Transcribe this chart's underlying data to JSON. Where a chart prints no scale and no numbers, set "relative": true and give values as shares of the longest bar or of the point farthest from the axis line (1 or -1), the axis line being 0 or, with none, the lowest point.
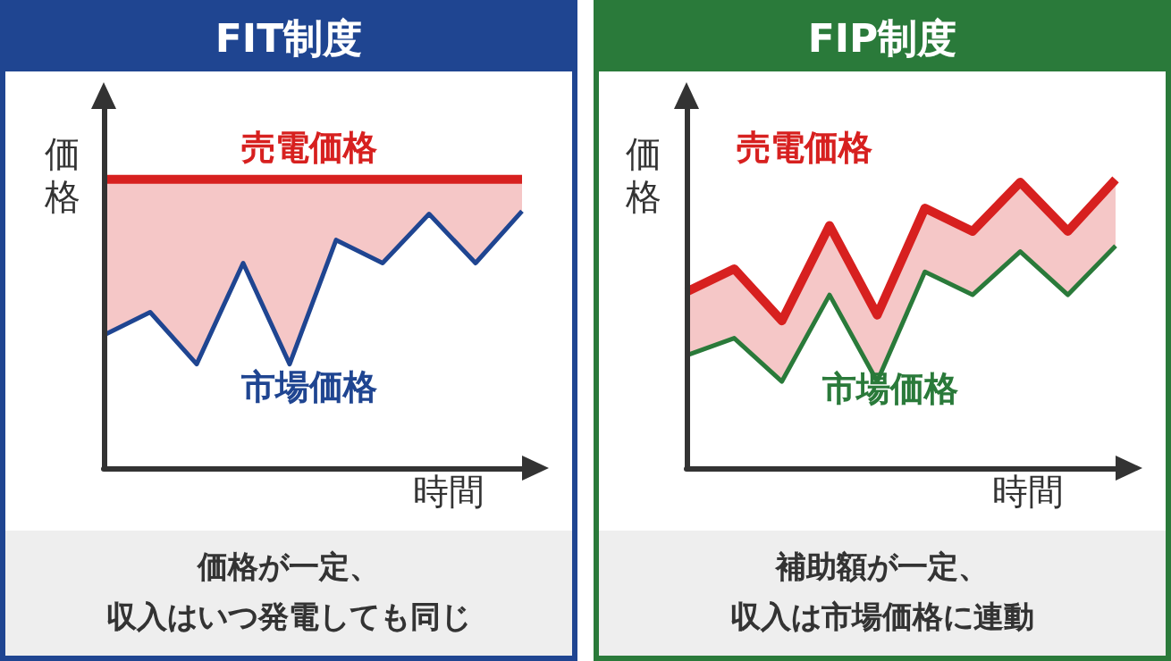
{
  "chart_data": [
    {
      "type": "line",
      "title": "FIT制度",
      "xlabel": "時間",
      "ylabel": "価格",
      "relative": true,
      "marker": "none",
      "annotations": [
        "価格が一定、",
        "収入はいつ発電しても同じ"
      ],
      "categories": [
        null,
        null,
        null,
        null,
        null,
        null,
        null,
        null,
        null,
        null
      ],
      "series": [
        {
          "name": "売電価格",
          "color": "#d7201f",
          "values": [
            1,
            1,
            1,
            1,
            1,
            1,
            1,
            1,
            1,
            1
          ],
          "lower": [
            0.46,
            0.54,
            0.36,
            0.71,
            0.36,
            0.79,
            0.71,
            0.88,
            0.71,
            0.89
          ],
          "upper": [
            1,
            1,
            1,
            1,
            1,
            1,
            1,
            1,
            1,
            1
          ]
        },
        {
          "name": "市場価格",
          "color": "#1f4591",
          "values": [
            0.46,
            0.54,
            0.36,
            0.71,
            0.36,
            0.79,
            0.71,
            0.88,
            0.71,
            0.89
          ]
        }
      ]
    },
    {
      "type": "line",
      "title": "FIP制度",
      "xlabel": "時間",
      "ylabel": "価格",
      "relative": true,
      "marker": "none",
      "annotations": [
        "補助額が一定、",
        "収入は市場価格に連動"
      ],
      "categories": [
        null,
        null,
        null,
        null,
        null,
        null,
        null,
        null,
        null,
        null
      ],
      "series": [
        {
          "name": "売電価格",
          "color": "#d7201f",
          "values": [
            0.61,
            0.69,
            0.51,
            0.84,
            0.53,
            0.9,
            0.82,
            0.99,
            0.82,
            1
          ],
          "lower": [
            0.39,
            0.45,
            0.3,
            0.6,
            0.3,
            0.68,
            0.6,
            0.75,
            0.6,
            0.77
          ],
          "upper": [
            0.61,
            0.69,
            0.51,
            0.84,
            0.53,
            0.9,
            0.82,
            0.99,
            0.82,
            1
          ]
        },
        {
          "name": "市場価格",
          "color": "#2a7a3a",
          "values": [
            0.39,
            0.45,
            0.3,
            0.6,
            0.3,
            0.68,
            0.6,
            0.75,
            0.6,
            0.77
          ]
        }
      ]
    }
  ]
}
